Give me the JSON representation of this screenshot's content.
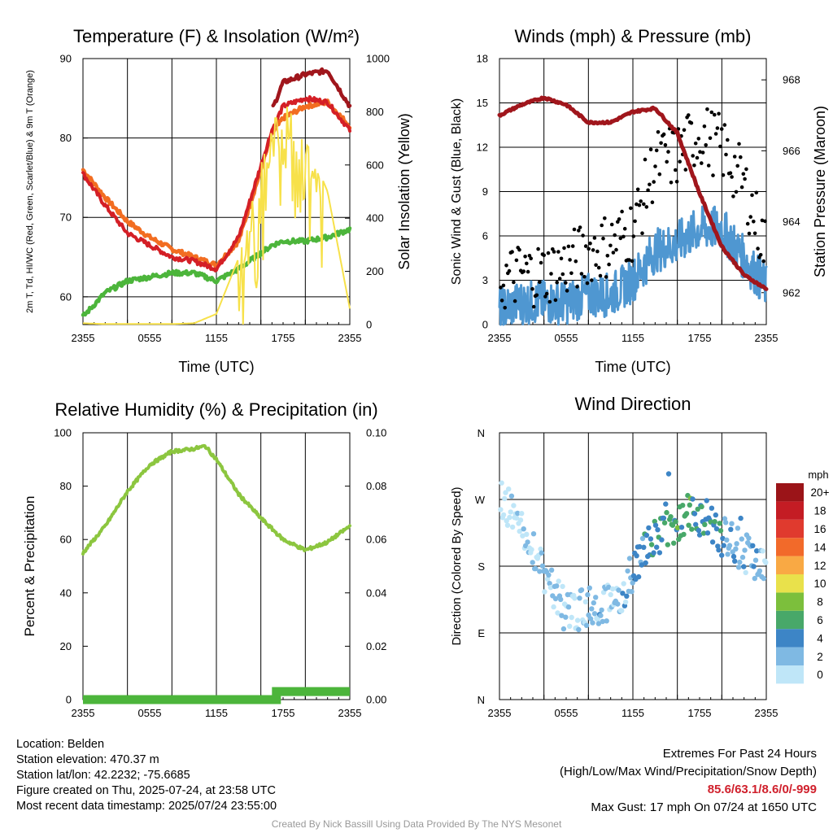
{
  "page": {
    "credit": "Created By Nick Bassill Using Data Provided By The NYS Mesonet"
  },
  "info": {
    "location": "Location: Belden",
    "elevation": "Station elevation: 470.37 m",
    "latlon": "Station lat/lon: 42.2232; -75.6685",
    "created": "Figure created on Thu, 2025-07-24, at 23:58 UTC",
    "recent": "Most recent data timestamp: 2025/07/24 23:55:00"
  },
  "extremes": {
    "title": "Extremes For Past 24 Hours",
    "subtitle": "(High/Low/Max Wind/Precipitation/Snow Depth)",
    "values": "85.6/63.1/8.6/0/-999",
    "gust": "Max Gust: 17 mph On 07/24 at 1650 UTC"
  },
  "chart_data": [
    {
      "id": "temp",
      "type": "line",
      "title": "Temperature (F) & Insolation (W/m²)",
      "xlabel": "Time (UTC)",
      "ylabel": "2m T, Td, HI/WC (Red, Green, Scarlet/Blue) & 9m T (Orange)",
      "ylabel_right": "Solar Insolation (Yellow)",
      "x_ticks": [
        "2355",
        "0555",
        "1155",
        "1755",
        "2355"
      ],
      "ylim": [
        56.5,
        90
      ],
      "y_ticks": [
        60,
        70,
        80,
        90
      ],
      "ylim_right": [
        0,
        1000
      ],
      "y_ticks_right": [
        0,
        200,
        400,
        600,
        800,
        1000
      ],
      "x_hours": [
        0,
        2,
        4,
        6,
        8,
        10,
        12,
        14,
        16,
        17,
        18,
        20,
        22,
        24
      ],
      "series": [
        {
          "key": "t9m",
          "color": "#f26d21",
          "width": 4.5,
          "values": [
            76.0,
            72.5,
            69.5,
            67.5,
            66.0,
            65.0,
            64.0,
            67.0,
            76.0,
            80.5,
            82.5,
            84.0,
            84.5,
            81.5
          ]
        },
        {
          "key": "t2m",
          "color": "#d41f26",
          "width": 4,
          "values": [
            75.5,
            71.5,
            68.0,
            66.5,
            65.0,
            64.5,
            63.5,
            67.5,
            76.5,
            81.0,
            84.0,
            85.0,
            84.5,
            81.0
          ]
        },
        {
          "key": "heat_index",
          "color": "#a0161c",
          "width": 4.5,
          "start_index": 9,
          "values": [
            null,
            null,
            null,
            null,
            null,
            null,
            null,
            null,
            null,
            83.5,
            87.0,
            88.0,
            88.5,
            84.0
          ]
        },
        {
          "key": "dewpoint",
          "color": "#4cb53b",
          "width": 4.5,
          "values": [
            57.5,
            60.5,
            62.0,
            62.5,
            63.0,
            63.0,
            62.0,
            63.5,
            65.5,
            66.5,
            67.0,
            67.0,
            67.5,
            68.5
          ]
        },
        {
          "key": "insolation",
          "axis": "right",
          "color": "#f7e14a",
          "width": 2,
          "values": [
            5,
            2,
            2,
            2,
            2,
            5,
            40,
            250,
            600,
            760,
            850,
            700,
            500,
            60
          ]
        }
      ]
    },
    {
      "id": "wind",
      "type": "line",
      "title": "Winds (mph) & Pressure (mb)",
      "xlabel": "Time (UTC)",
      "ylabel": "Sonic Wind & Gust (Blue, Black)",
      "ylabel_right": "Station Pressure (Maroon)",
      "x_ticks": [
        "2355",
        "0555",
        "1155",
        "1755",
        "2355"
      ],
      "ylim": [
        0,
        18
      ],
      "y_ticks": [
        0,
        3,
        6,
        9,
        12,
        15,
        18
      ],
      "ylim_right": [
        961.1,
        968.6
      ],
      "y_ticks_right": [
        962,
        964,
        966,
        968
      ],
      "x_hours": [
        0,
        2,
        4,
        6,
        8,
        10,
        12,
        14,
        16,
        18,
        20,
        22,
        24
      ],
      "series": [
        {
          "key": "wind",
          "color": "#4f97d1",
          "width": 3,
          "values": [
            1.0,
            1.5,
            1.5,
            1.5,
            2.0,
            2.0,
            3.0,
            5.0,
            5.5,
            6.5,
            6.5,
            4.5,
            2.5
          ]
        },
        {
          "key": "gust",
          "color": "#000000",
          "marker": "dot",
          "values": [
            2.5,
            3.0,
            3.0,
            3.5,
            4.5,
            5.0,
            6.0,
            10.5,
            11.0,
            12.5,
            11.5,
            9.0,
            4.5
          ]
        },
        {
          "key": "pressure",
          "axis": "right",
          "color": "#a0161c",
          "width": 5,
          "values": [
            967.0,
            967.3,
            967.5,
            967.3,
            966.8,
            966.8,
            967.1,
            967.2,
            966.5,
            964.8,
            963.3,
            962.5,
            962.1
          ]
        }
      ]
    },
    {
      "id": "rh",
      "type": "line",
      "title": "Relative Humidity (%) & Precipitation (in)",
      "ylabel": "Percent & Precipitation",
      "x_ticks": [
        "2355",
        "0555",
        "1155",
        "1755",
        "2355"
      ],
      "ylim": [
        0,
        100
      ],
      "y_ticks": [
        0,
        20,
        40,
        60,
        80,
        100
      ],
      "ylim_right": [
        0,
        0.1
      ],
      "y_ticks_right": [
        "0.00",
        "0.02",
        "0.04",
        "0.06",
        "0.08",
        "0.10"
      ],
      "x_hours": [
        0,
        2,
        4,
        6,
        8,
        10,
        11,
        12,
        14,
        16,
        18,
        20,
        22,
        24
      ],
      "series": [
        {
          "key": "rh",
          "color": "#8cc63f",
          "width": 4,
          "values": [
            55,
            65,
            78,
            88,
            93,
            94,
            95,
            90,
            77,
            68,
            60,
            56,
            59,
            65
          ]
        },
        {
          "key": "precip",
          "axis": "right",
          "color": "#4cb53b",
          "width": 11,
          "values": [
            0,
            0,
            0,
            0,
            0,
            0,
            0,
            0,
            0,
            0,
            0.003,
            0.003,
            0.003,
            0.003
          ]
        }
      ]
    },
    {
      "id": "dir",
      "type": "scatter",
      "title": "Wind Direction",
      "ylabel": "Direction (Colored By Speed)",
      "x_ticks": [
        "2355",
        "0555",
        "1155",
        "1755",
        "2355"
      ],
      "y_ticks": [
        "N",
        "E",
        "S",
        "W",
        "N"
      ],
      "ylim": [
        0,
        360
      ],
      "colorbar": {
        "title": "mph",
        "labels": [
          "0",
          "2",
          "4",
          "6",
          "8",
          "10",
          "12",
          "14",
          "16",
          "18",
          "20+"
        ],
        "colors": [
          "#bfe6f8",
          "#7fb9e3",
          "#3d85c6",
          "#48a869",
          "#7cbf3c",
          "#e9e14b",
          "#f9a944",
          "#f26a2a",
          "#e03a2e",
          "#c41c24",
          "#9b1418"
        ]
      },
      "x_hours": [
        0,
        1,
        2,
        3,
        4,
        5,
        6,
        7,
        8,
        9,
        10,
        11,
        12,
        13,
        14,
        15,
        16,
        17,
        18,
        19,
        20,
        21,
        22,
        23,
        24
      ],
      "values": [
        280,
        255,
        235,
        205,
        170,
        145,
        125,
        120,
        125,
        130,
        135,
        140,
        175,
        200,
        215,
        230,
        240,
        250,
        245,
        240,
        220,
        210,
        200,
        185,
        180
      ],
      "speeds": [
        0,
        1,
        1,
        2,
        2,
        2,
        2,
        2,
        2,
        3,
        2,
        3,
        4,
        5,
        6,
        6,
        7,
        7,
        6,
        6,
        5,
        4,
        3,
        3,
        2
      ]
    }
  ]
}
